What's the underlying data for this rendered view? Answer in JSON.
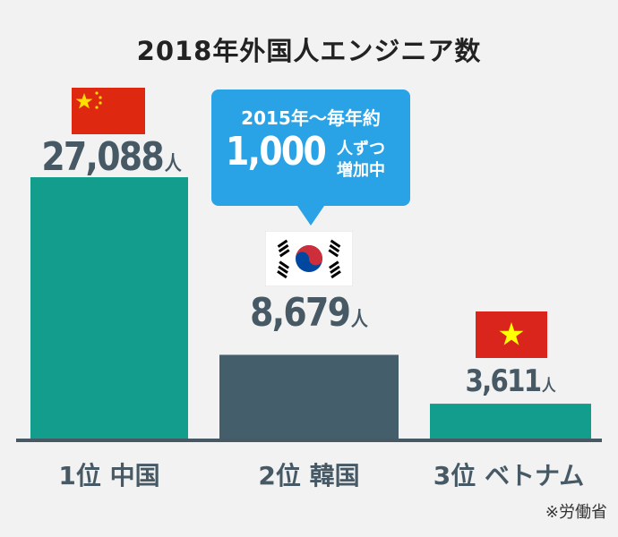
{
  "chart_data": {
    "type": "bar",
    "title": "2018年外国人エンジニア数",
    "categories": [
      "1位 中国",
      "2位 韓国",
      "3位 ベトナム"
    ],
    "values": [
      27088,
      8679,
      3611
    ],
    "value_labels": [
      "27,088",
      "8,679",
      "3,611"
    ],
    "unit": "人",
    "bar_colors": [
      "#139d8d",
      "#455e6c",
      "#139d8d"
    ],
    "ylim": [
      0,
      27088
    ],
    "grid": false,
    "annotation": {
      "line1": "2015年〜毎年約",
      "big": "1,000",
      "side1": "人ずつ",
      "side2": "増加中"
    },
    "source": "※労働省"
  },
  "colors": {
    "background": "#f2f2f2",
    "callout": "#2aa3e6",
    "text": "#465965",
    "axis": "#465965"
  },
  "icons": [
    "china-flag-icon",
    "korea-flag-icon",
    "vietnam-flag-icon"
  ]
}
